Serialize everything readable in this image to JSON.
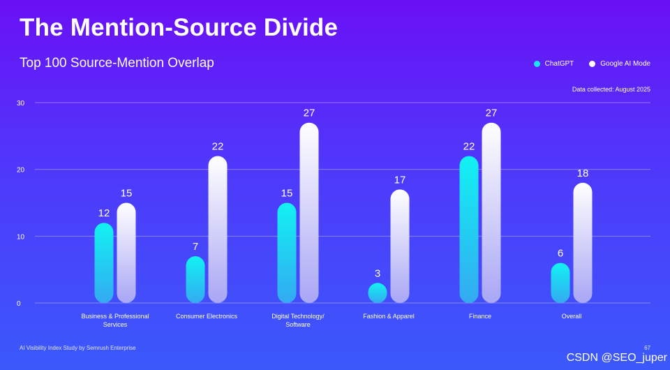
{
  "header": {
    "title": "The Mention-Source Divide",
    "subtitle": "Top 100 Source-Mention Overlap",
    "note": "Data collected: August 2025"
  },
  "footer": {
    "source": "AI Visibility Index Study by Semrush Enterprise",
    "page": "67"
  },
  "watermark": "CSDN @SEO_juper",
  "colors": {
    "chatgpt": "#19e6f0",
    "google": "#ffffff",
    "background_top": "#6a10f5",
    "background_bottom": "#3b59fb"
  },
  "chart_data": {
    "type": "bar",
    "title": "Top 100 Source-Mention Overlap",
    "categories": [
      [
        "Business & Professional",
        "Services"
      ],
      [
        "Consumer Electronics"
      ],
      [
        "Digital Technology/",
        "Software"
      ],
      [
        "Fashion & Apparel"
      ],
      [
        "Finance"
      ],
      [
        "Overall"
      ]
    ],
    "series": [
      {
        "name": "ChatGPT",
        "values": [
          12,
          7,
          15,
          3,
          22,
          6
        ]
      },
      {
        "name": "Google AI Mode",
        "values": [
          15,
          22,
          27,
          17,
          27,
          18
        ]
      }
    ],
    "ylim": [
      0,
      30
    ],
    "yticks": [
      0,
      10,
      20,
      30
    ],
    "grid": true,
    "legend": "top-right"
  }
}
